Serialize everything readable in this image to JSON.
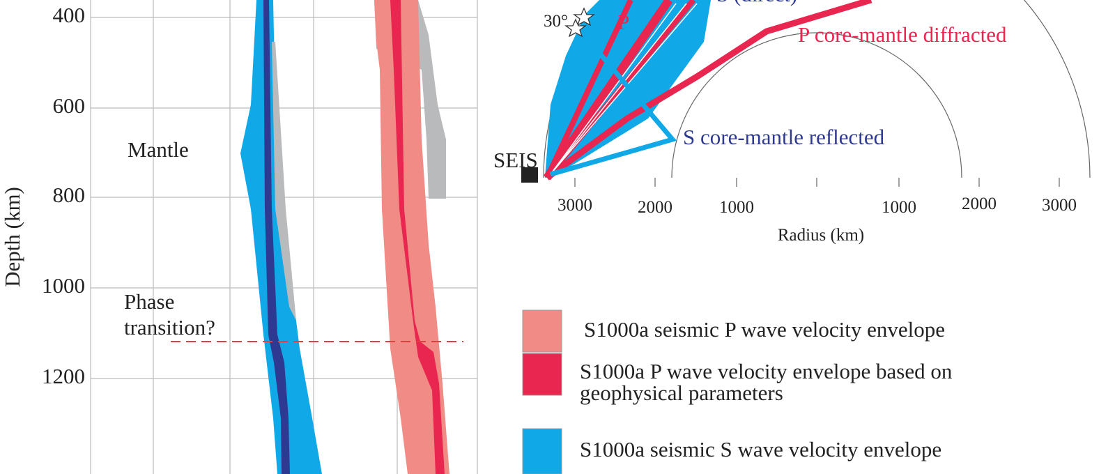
{
  "depth_profile": {
    "axis_label": "Depth (km)",
    "ticks": [
      "400",
      "600",
      "800",
      "1000",
      "1200"
    ],
    "annotations": {
      "mantle": "Mantle",
      "phase": "Phase",
      "transition": "transition?"
    }
  },
  "ray_diagram": {
    "labels": {
      "s_direct": "S (direct)",
      "p_diffracted": "P core-mantle diffracted",
      "s_reflected": "S core-mantle reflected",
      "p": "P",
      "angle": "30°",
      "station": "SEIS"
    },
    "ticks": [
      "3000",
      "2000",
      "1000",
      "1000",
      "2000",
      "3000"
    ],
    "axis_label": "Radius (km)"
  },
  "legend": {
    "p_seismic": "S1000a seismic P wave velocity envelope",
    "p_geo_1": "S1000a P wave velocity envelope based on",
    "p_geo_2": "geophysical parameters",
    "s_seismic": "S1000a seismic S wave velocity envelope"
  }
}
